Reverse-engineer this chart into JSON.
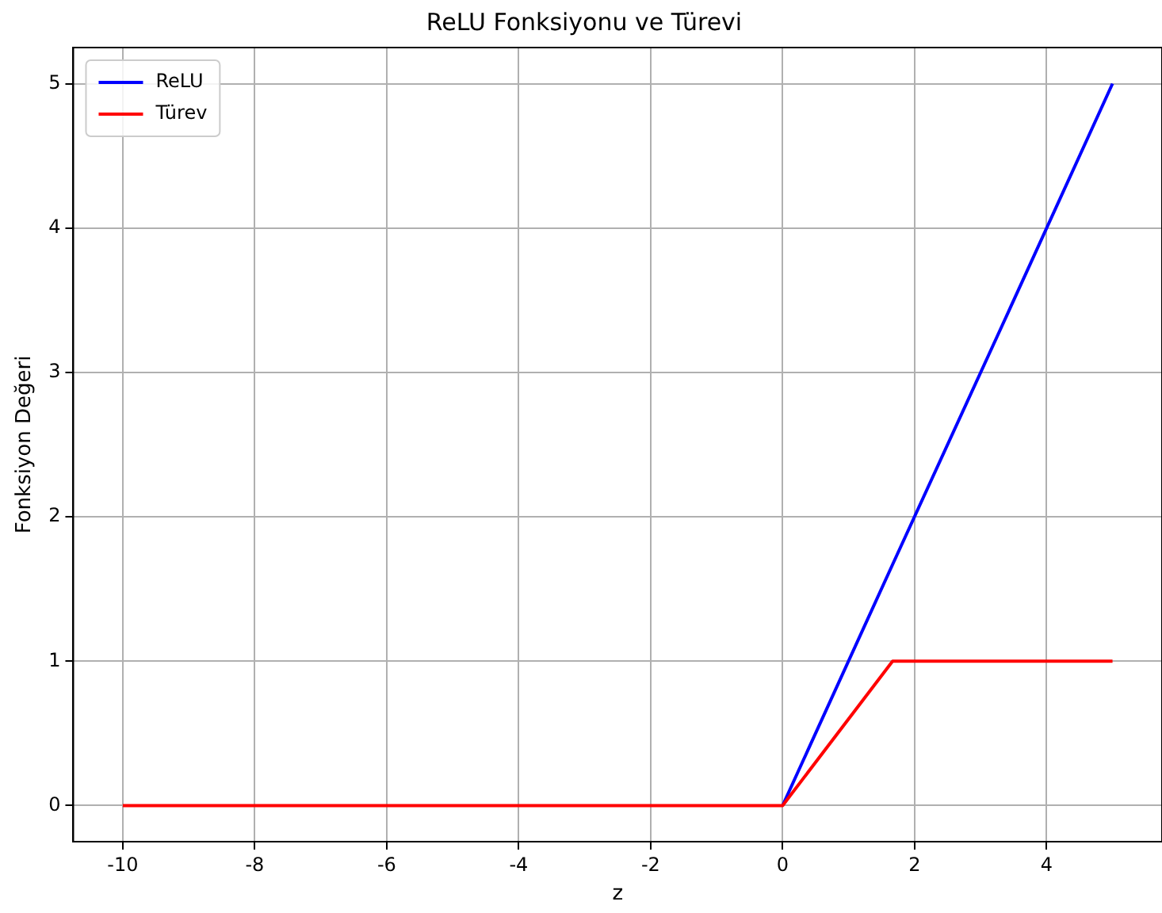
{
  "chart_data": {
    "type": "line",
    "title": "ReLU Fonksiyonu ve Türevi",
    "xlabel": "z",
    "ylabel": "Fonksiyon Değeri",
    "x": [
      -10,
      -8.333,
      -6.667,
      -5,
      -3.333,
      -1.667,
      0,
      1.667,
      3.333,
      5
    ],
    "series": [
      {
        "name": "ReLU",
        "color": "#0000ff",
        "values": [
          null,
          null,
          null,
          null,
          null,
          null,
          0,
          1.67,
          3.33,
          5
        ]
      },
      {
        "name": "Türev",
        "color": "#ff0000",
        "values": [
          0,
          0,
          0,
          0,
          0,
          0,
          0,
          1,
          1,
          1
        ]
      }
    ],
    "xlim": [
      -10.75,
      5.75
    ],
    "xticks": [
      -10,
      -8,
      -6,
      -4,
      -2,
      0,
      2,
      4
    ],
    "ylim": [
      -0.25,
      5.25
    ],
    "yticks": [
      0,
      1,
      2,
      3,
      4,
      5
    ],
    "grid": true,
    "legend": "top left",
    "marker": "none",
    "line_style": "solid"
  }
}
